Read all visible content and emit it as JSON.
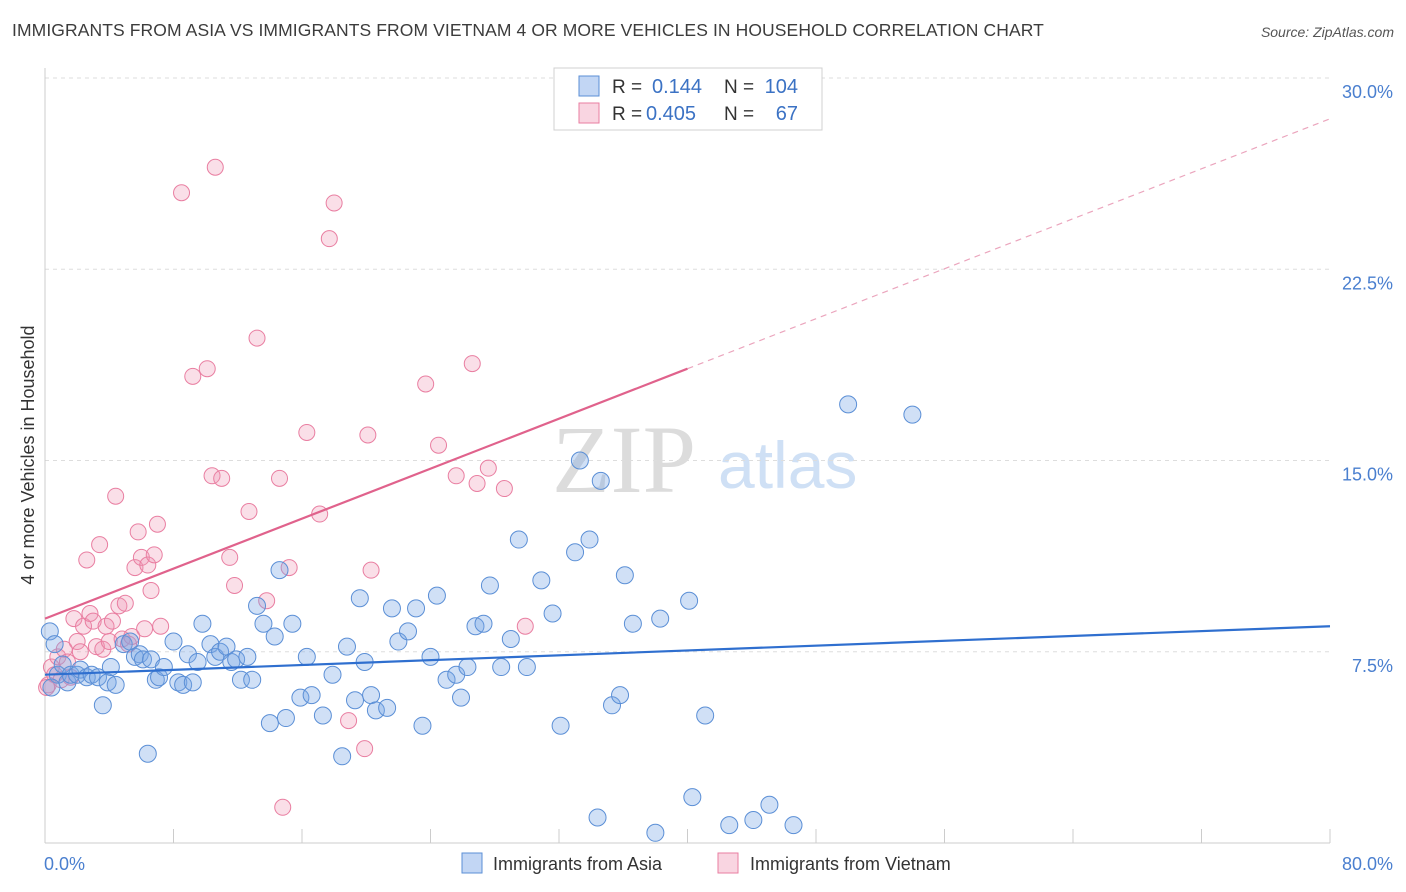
{
  "title": "IMMIGRANTS FROM ASIA VS IMMIGRANTS FROM VIETNAM 4 OR MORE VEHICLES IN HOUSEHOLD CORRELATION CHART",
  "source": "Source: ZipAtlas.com",
  "watermark": {
    "zip": "ZIP",
    "atlas": "atlas"
  },
  "colors": {
    "asia": "#5b8fd6",
    "asia_fill": "rgba(120,165,230,0.35)",
    "asia_line": "#2f6fcf",
    "vietnam": "#e97ea1",
    "vietnam_fill": "rgba(240,150,180,0.30)",
    "vietnam_line": "#e0628c",
    "tick_text": "#4a7fcf",
    "grid": "#dddddd"
  },
  "legend_box": {
    "rows": [
      {
        "r_label": "R =",
        "r_value": "0.144",
        "n_label": "N =",
        "n_value": "104",
        "series": "asia"
      },
      {
        "r_label": "R =",
        "r_value": "0.405",
        "n_label": "N =",
        "n_value": "67",
        "series": "vietnam"
      }
    ]
  },
  "chart_data": {
    "type": "scatter",
    "title": "IMMIGRANTS FROM ASIA VS IMMIGRANTS FROM VIETNAM 4 OR MORE VEHICLES IN HOUSEHOLD CORRELATION CHART",
    "xlabel": "",
    "ylabel": "4 or more Vehicles in Household",
    "xlim": [
      0,
      80
    ],
    "ylim": [
      0,
      30
    ],
    "x_tick_labels": [
      "0.0%",
      "80.0%"
    ],
    "y_ticks": [
      7.5,
      15.0,
      22.5,
      30.0
    ],
    "y_tick_labels": [
      "7.5%",
      "15.0%",
      "22.5%",
      "30.0%"
    ],
    "grid": true,
    "legend_position": "top-center and bottom",
    "series": [
      {
        "name": "Immigrants from Asia",
        "key": "asia",
        "R": 0.144,
        "N": 104,
        "trend": {
          "x0": 0,
          "y0": 6.6,
          "x1": 80,
          "y1": 8.5,
          "dashed_to": null
        },
        "points": [
          [
            0.3,
            8.3
          ],
          [
            0.6,
            7.8
          ],
          [
            0.8,
            6.6
          ],
          [
            1.1,
            7.0
          ],
          [
            1.4,
            6.3
          ],
          [
            1.6,
            6.6
          ],
          [
            2.0,
            6.6
          ],
          [
            2.2,
            6.8
          ],
          [
            2.6,
            6.5
          ],
          [
            2.9,
            6.6
          ],
          [
            3.3,
            6.5
          ],
          [
            3.6,
            5.4
          ],
          [
            3.9,
            6.3
          ],
          [
            4.1,
            6.9
          ],
          [
            4.4,
            6.2
          ],
          [
            4.9,
            7.8
          ],
          [
            5.3,
            7.9
          ],
          [
            5.6,
            7.3
          ],
          [
            5.9,
            7.4
          ],
          [
            6.1,
            7.2
          ],
          [
            6.4,
            3.5
          ],
          [
            6.6,
            7.2
          ],
          [
            6.9,
            6.4
          ],
          [
            7.1,
            6.5
          ],
          [
            7.4,
            6.9
          ],
          [
            8.0,
            7.9
          ],
          [
            8.3,
            6.3
          ],
          [
            8.6,
            6.2
          ],
          [
            8.9,
            7.4
          ],
          [
            9.2,
            6.3
          ],
          [
            9.5,
            7.1
          ],
          [
            9.8,
            8.6
          ],
          [
            10.3,
            7.8
          ],
          [
            10.6,
            7.3
          ],
          [
            10.9,
            7.5
          ],
          [
            11.3,
            7.7
          ],
          [
            11.6,
            7.1
          ],
          [
            11.9,
            7.2
          ],
          [
            12.2,
            6.4
          ],
          [
            12.6,
            7.3
          ],
          [
            12.9,
            6.4
          ],
          [
            13.2,
            9.3
          ],
          [
            13.6,
            8.6
          ],
          [
            14.0,
            4.7
          ],
          [
            14.3,
            8.1
          ],
          [
            14.6,
            10.7
          ],
          [
            15.0,
            4.9
          ],
          [
            15.4,
            8.6
          ],
          [
            15.9,
            5.7
          ],
          [
            16.3,
            7.3
          ],
          [
            16.6,
            5.8
          ],
          [
            17.3,
            5.0
          ],
          [
            17.9,
            6.6
          ],
          [
            18.5,
            3.4
          ],
          [
            18.8,
            7.7
          ],
          [
            19.3,
            5.6
          ],
          [
            19.6,
            9.6
          ],
          [
            19.9,
            7.1
          ],
          [
            20.3,
            5.8
          ],
          [
            20.6,
            5.2
          ],
          [
            21.3,
            5.3
          ],
          [
            21.6,
            9.2
          ],
          [
            22.0,
            7.9
          ],
          [
            22.6,
            8.3
          ],
          [
            23.1,
            9.2
          ],
          [
            23.5,
            4.6
          ],
          [
            24.0,
            7.3
          ],
          [
            24.4,
            9.7
          ],
          [
            25.0,
            6.4
          ],
          [
            25.6,
            6.6
          ],
          [
            25.9,
            5.7
          ],
          [
            26.3,
            6.9
          ],
          [
            26.8,
            8.5
          ],
          [
            27.3,
            8.6
          ],
          [
            27.7,
            10.1
          ],
          [
            28.4,
            6.9
          ],
          [
            29.0,
            8.0
          ],
          [
            29.5,
            11.9
          ],
          [
            30.0,
            6.9
          ],
          [
            30.9,
            10.3
          ],
          [
            31.6,
            9.0
          ],
          [
            32.1,
            4.6
          ],
          [
            33.0,
            11.4
          ],
          [
            33.3,
            15.0
          ],
          [
            33.9,
            11.9
          ],
          [
            34.4,
            1.0
          ],
          [
            34.6,
            14.2
          ],
          [
            35.3,
            5.4
          ],
          [
            35.8,
            5.8
          ],
          [
            36.1,
            10.5
          ],
          [
            36.6,
            8.6
          ],
          [
            38.0,
            0.4
          ],
          [
            38.3,
            8.8
          ],
          [
            40.1,
            9.5
          ],
          [
            40.3,
            1.8
          ],
          [
            41.1,
            5.0
          ],
          [
            42.6,
            0.7
          ],
          [
            44.1,
            0.9
          ],
          [
            45.1,
            1.5
          ],
          [
            46.6,
            0.7
          ],
          [
            50.0,
            17.2
          ],
          [
            54.0,
            16.8
          ],
          [
            0.4,
            6.1
          ]
        ]
      },
      {
        "name": "Immigrants from Vietnam",
        "key": "vietnam",
        "R": 0.405,
        "N": 67,
        "trend": {
          "x0": 0,
          "y0": 8.8,
          "x1": 40,
          "y1": 18.6,
          "dashed_to": {
            "x": 80,
            "y": 28.4
          }
        },
        "points": [
          [
            0.2,
            6.2
          ],
          [
            0.4,
            6.9
          ],
          [
            0.6,
            6.6
          ],
          [
            0.8,
            7.3
          ],
          [
            1.0,
            6.4
          ],
          [
            1.2,
            7.6
          ],
          [
            1.4,
            7.1
          ],
          [
            1.6,
            6.5
          ],
          [
            1.8,
            8.8
          ],
          [
            2.0,
            7.9
          ],
          [
            2.2,
            7.5
          ],
          [
            2.4,
            8.5
          ],
          [
            2.6,
            11.1
          ],
          [
            2.8,
            9.0
          ],
          [
            3.0,
            8.7
          ],
          [
            3.2,
            7.7
          ],
          [
            3.4,
            11.7
          ],
          [
            3.6,
            7.6
          ],
          [
            3.8,
            8.5
          ],
          [
            4.0,
            7.9
          ],
          [
            4.2,
            8.7
          ],
          [
            4.4,
            13.6
          ],
          [
            4.6,
            9.3
          ],
          [
            4.8,
            8.0
          ],
          [
            5.0,
            9.4
          ],
          [
            5.2,
            7.8
          ],
          [
            5.4,
            8.1
          ],
          [
            5.6,
            10.8
          ],
          [
            5.8,
            12.2
          ],
          [
            6.0,
            11.2
          ],
          [
            6.2,
            8.4
          ],
          [
            6.4,
            10.9
          ],
          [
            6.6,
            9.9
          ],
          [
            6.8,
            11.3
          ],
          [
            7.0,
            12.5
          ],
          [
            7.2,
            8.5
          ],
          [
            8.5,
            25.5
          ],
          [
            9.2,
            18.3
          ],
          [
            10.1,
            18.6
          ],
          [
            10.4,
            14.4
          ],
          [
            10.6,
            26.5
          ],
          [
            11.0,
            14.3
          ],
          [
            11.5,
            11.2
          ],
          [
            11.8,
            10.1
          ],
          [
            12.7,
            13.0
          ],
          [
            13.2,
            19.8
          ],
          [
            13.8,
            9.5
          ],
          [
            14.6,
            14.3
          ],
          [
            14.8,
            1.4
          ],
          [
            15.2,
            10.8
          ],
          [
            16.3,
            16.1
          ],
          [
            17.1,
            12.9
          ],
          [
            17.7,
            23.7
          ],
          [
            18.0,
            25.1
          ],
          [
            18.9,
            4.8
          ],
          [
            19.9,
            3.7
          ],
          [
            20.1,
            16.0
          ],
          [
            20.3,
            10.7
          ],
          [
            23.7,
            18.0
          ],
          [
            24.5,
            15.6
          ],
          [
            25.6,
            14.4
          ],
          [
            26.6,
            18.8
          ],
          [
            26.9,
            14.1
          ],
          [
            27.6,
            14.7
          ],
          [
            28.6,
            13.9
          ],
          [
            29.9,
            8.5
          ],
          [
            0.1,
            6.1
          ]
        ]
      }
    ]
  },
  "bottom_legend": [
    {
      "label": "Immigrants from Asia",
      "series": "asia"
    },
    {
      "label": "Immigrants from Vietnam",
      "series": "vietnam"
    }
  ]
}
